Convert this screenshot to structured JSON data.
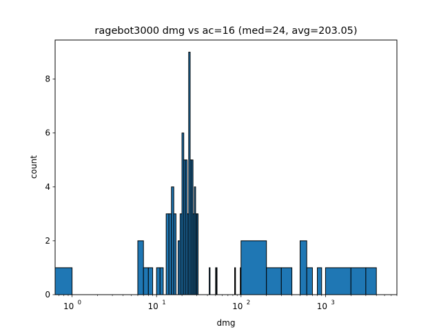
{
  "chart_data": {
    "type": "bar",
    "title": "ragebot3000 dmg vs ac=16 (med=24, avg=203.05)",
    "xlabel": "dmg",
    "ylabel": "count",
    "xscale": "log",
    "xlim": [
      0.63,
      7000
    ],
    "ylim": [
      0,
      9.45
    ],
    "x_ticks": [
      {
        "value": 1,
        "base": "10",
        "exp": "0"
      },
      {
        "value": 10,
        "base": "10",
        "exp": "1"
      },
      {
        "value": 100,
        "base": "10",
        "exp": "2"
      },
      {
        "value": 1000,
        "base": "10",
        "exp": "3"
      }
    ],
    "y_ticks": [
      0,
      2,
      4,
      6,
      8
    ],
    "bar_color": "#1f77b4",
    "edge_color": "#000000",
    "bins": [
      {
        "x0": 0.6,
        "x1": 1,
        "count": 1
      },
      {
        "x0": 6,
        "x1": 7,
        "count": 2
      },
      {
        "x0": 7,
        "x1": 8,
        "count": 1
      },
      {
        "x0": 8,
        "x1": 9,
        "count": 1
      },
      {
        "x0": 10,
        "x1": 11,
        "count": 1
      },
      {
        "x0": 11,
        "x1": 12,
        "count": 1
      },
      {
        "x0": 13,
        "x1": 14,
        "count": 3
      },
      {
        "x0": 14,
        "x1": 15,
        "count": 3
      },
      {
        "x0": 15,
        "x1": 16,
        "count": 4
      },
      {
        "x0": 16,
        "x1": 17,
        "count": 3
      },
      {
        "x0": 18,
        "x1": 19,
        "count": 2
      },
      {
        "x0": 19,
        "x1": 20,
        "count": 3
      },
      {
        "x0": 20,
        "x1": 21,
        "count": 6
      },
      {
        "x0": 21,
        "x1": 22,
        "count": 5
      },
      {
        "x0": 22,
        "x1": 23,
        "count": 5
      },
      {
        "x0": 23,
        "x1": 24,
        "count": 3
      },
      {
        "x0": 24,
        "x1": 25,
        "count": 9
      },
      {
        "x0": 25,
        "x1": 26,
        "count": 5
      },
      {
        "x0": 26,
        "x1": 27,
        "count": 5
      },
      {
        "x0": 27,
        "x1": 28,
        "count": 3
      },
      {
        "x0": 28,
        "x1": 29,
        "count": 4
      },
      {
        "x0": 29,
        "x1": 30,
        "count": 3
      },
      {
        "x0": 30,
        "x1": 31,
        "count": 3
      },
      {
        "x0": 42,
        "x1": 43,
        "count": 1
      },
      {
        "x0": 50,
        "x1": 51,
        "count": 1
      },
      {
        "x0": 51,
        "x1": 52,
        "count": 1
      },
      {
        "x0": 84,
        "x1": 85,
        "count": 1
      },
      {
        "x0": 85,
        "x1": 86,
        "count": 1
      },
      {
        "x0": 98,
        "x1": 99,
        "count": 1
      },
      {
        "x0": 100,
        "x1": 200,
        "count": 2
      },
      {
        "x0": 200,
        "x1": 300,
        "count": 1
      },
      {
        "x0": 300,
        "x1": 400,
        "count": 1
      },
      {
        "x0": 500,
        "x1": 600,
        "count": 2
      },
      {
        "x0": 600,
        "x1": 700,
        "count": 1
      },
      {
        "x0": 800,
        "x1": 900,
        "count": 1
      },
      {
        "x0": 1000,
        "x1": 2000,
        "count": 1
      },
      {
        "x0": 2000,
        "x1": 3000,
        "count": 1
      },
      {
        "x0": 3000,
        "x1": 4000,
        "count": 1
      }
    ]
  }
}
